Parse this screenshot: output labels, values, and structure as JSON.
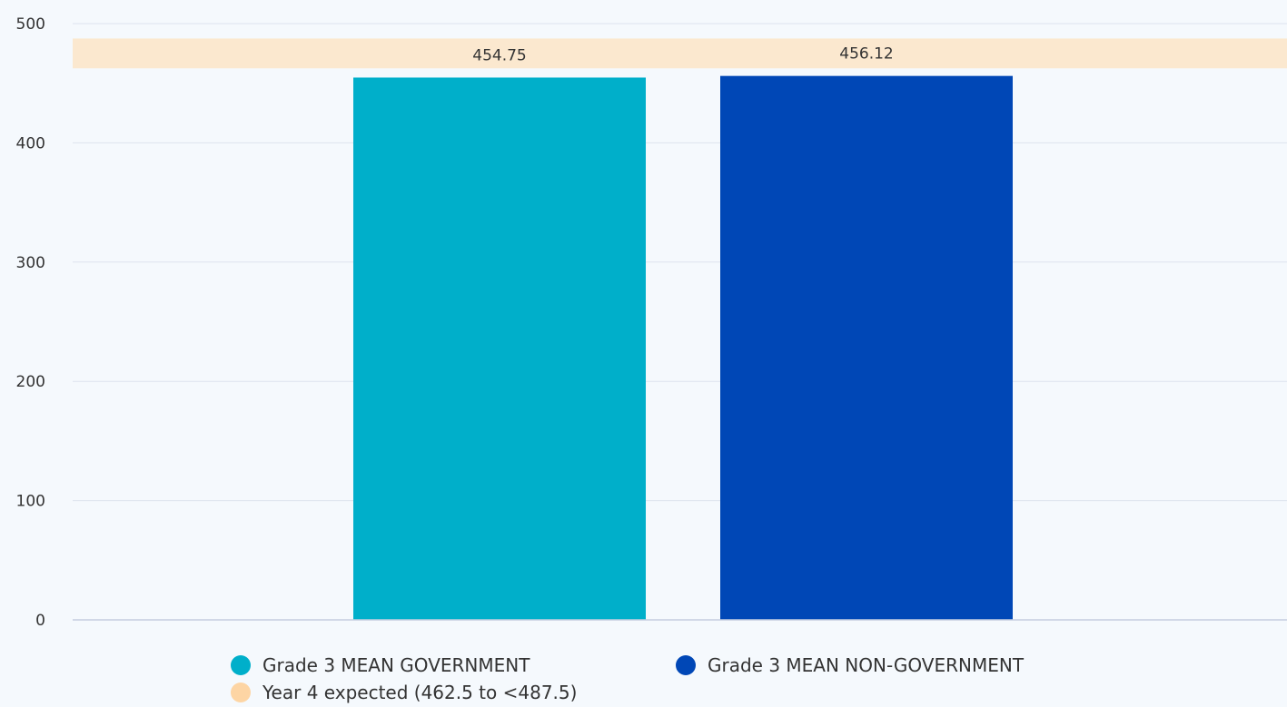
{
  "chart_data": {
    "type": "bar",
    "title": "",
    "xlabel": "",
    "ylabel": "",
    "ylim": [
      0,
      500
    ],
    "yticks": [
      0,
      100,
      200,
      300,
      400,
      500
    ],
    "grid": true,
    "bars": [
      {
        "name": "Grade 3 MEAN GOVERNMENT",
        "value": 454.75,
        "label": "454.75",
        "color": "#00afca"
      },
      {
        "name": "Grade 3 MEAN NON-GOVERNMENT",
        "value": 456.12,
        "label": "456.12",
        "color": "#0047b6"
      }
    ],
    "band": {
      "name": "Year 4 expected (462.5 to <487.5)",
      "from": 462.5,
      "to": 487.5,
      "color": "#fbe8cf",
      "legend_color": "#fdd5a4"
    },
    "legend": {
      "position": "bottom",
      "items": [
        {
          "label": "Grade 3 MEAN GOVERNMENT",
          "color": "#00afca"
        },
        {
          "label": "Grade 3 MEAN NON-GOVERNMENT",
          "color": "#0047b6"
        },
        {
          "label": "Year 4 expected (462.5 to <487.5)",
          "color": "#fdd5a4"
        }
      ]
    }
  },
  "colors": {
    "background": "#f5f9fd",
    "gridline": "#dde3ee",
    "axis": "#c5cde0",
    "text": "#333333"
  }
}
